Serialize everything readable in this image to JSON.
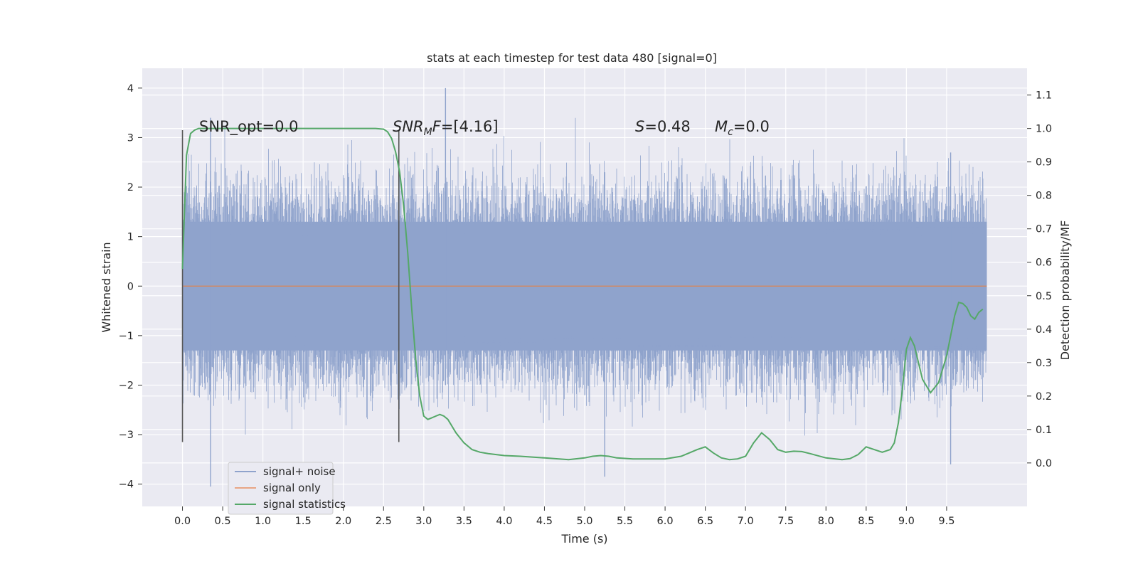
{
  "chart_data": {
    "type": "line",
    "title": "stats at each timestep for test data 480 [signal=0]",
    "xlabel": "Time (s)",
    "ylabel_left": "Whitened strain",
    "ylabel_right": "Detection probability/MF",
    "xlim": [
      -0.5,
      10.5
    ],
    "ylim_left": [
      -4.45,
      4.4
    ],
    "ylim_right": [
      -0.13,
      1.18
    ],
    "x_ticks": [
      "0.0",
      "0.5",
      "1.0",
      "1.5",
      "2.0",
      "2.5",
      "3.0",
      "3.5",
      "4.0",
      "4.5",
      "5.0",
      "5.5",
      "6.0",
      "6.5",
      "7.0",
      "7.5",
      "8.0",
      "8.5",
      "9.0",
      "9.5"
    ],
    "y_left_ticks": [
      "4",
      "3",
      "2",
      "1",
      "0",
      "−1",
      "−2",
      "−3",
      "−4"
    ],
    "y_right_ticks": [
      "1.1",
      "1.0",
      "0.9",
      "0.8",
      "0.7",
      "0.6",
      "0.5",
      "0.4",
      "0.3",
      "0.2",
      "0.1",
      "0.0"
    ],
    "grid": true,
    "annotations": {
      "snr_opt": "SNR_opt=0.0",
      "snr_mf_main": "SNR",
      "snr_mf_sub": "M",
      "snr_mf_rest": "F=[4.16]",
      "s_var": "S",
      "s_rest": "=0.48",
      "mc_var": "M",
      "mc_sub": "c",
      "mc_rest": "=0.0"
    },
    "vertical_lines_x": [
      0.0,
      2.69
    ],
    "legend": {
      "position": "lower-left",
      "entries": [
        "signal+ noise",
        "signal only",
        "signal statistics"
      ]
    },
    "colors": {
      "noise": "#8fa3cc",
      "signal_only": "#dd8452",
      "statistics": "#55a868",
      "background": "#eaeaf2",
      "grid": "#ffffff"
    },
    "series": [
      {
        "name": "signal+ noise",
        "axis": "left",
        "x_range": [
          0.0,
          10.0
        ],
        "typical_band": [
          -1.3,
          1.3
        ],
        "typical_spikes": [
          -2.6,
          2.6
        ],
        "max": 4.0,
        "min": -4.05
      },
      {
        "name": "signal only",
        "axis": "left",
        "x": [
          0.0,
          10.0
        ],
        "values": [
          0.0,
          0.0
        ]
      },
      {
        "name": "signal statistics",
        "axis": "right",
        "x": [
          0.0,
          0.05,
          0.1,
          0.15,
          0.2,
          0.3,
          0.5,
          1.0,
          1.5,
          2.0,
          2.2,
          2.4,
          2.5,
          2.55,
          2.6,
          2.65,
          2.7,
          2.75,
          2.8,
          2.85,
          2.9,
          2.95,
          3.0,
          3.05,
          3.1,
          3.15,
          3.2,
          3.25,
          3.3,
          3.35,
          3.4,
          3.45,
          3.5,
          3.6,
          3.7,
          3.8,
          4.0,
          4.2,
          4.5,
          4.8,
          5.0,
          5.1,
          5.2,
          5.3,
          5.4,
          5.6,
          6.0,
          6.2,
          6.3,
          6.4,
          6.5,
          6.6,
          6.7,
          6.8,
          6.9,
          7.0,
          7.1,
          7.2,
          7.3,
          7.4,
          7.5,
          7.6,
          7.7,
          7.8,
          8.0,
          8.2,
          8.3,
          8.4,
          8.5,
          8.6,
          8.7,
          8.8,
          8.85,
          8.9,
          8.95,
          9.0,
          9.05,
          9.1,
          9.15,
          9.2,
          9.3,
          9.4,
          9.5,
          9.6,
          9.65,
          9.7,
          9.75,
          9.8,
          9.85,
          9.9,
          9.95
        ],
        "values": [
          0.58,
          0.92,
          0.985,
          0.995,
          1.0,
          1.0,
          1.0,
          1.0,
          1.0,
          1.0,
          1.0,
          1.0,
          0.998,
          0.99,
          0.97,
          0.93,
          0.87,
          0.77,
          0.63,
          0.46,
          0.31,
          0.2,
          0.14,
          0.13,
          0.135,
          0.14,
          0.145,
          0.14,
          0.13,
          0.11,
          0.09,
          0.075,
          0.06,
          0.04,
          0.032,
          0.028,
          0.022,
          0.02,
          0.015,
          0.01,
          0.015,
          0.02,
          0.022,
          0.02,
          0.015,
          0.012,
          0.012,
          0.02,
          0.03,
          0.04,
          0.048,
          0.03,
          0.015,
          0.01,
          0.012,
          0.02,
          0.06,
          0.09,
          0.07,
          0.04,
          0.032,
          0.035,
          0.034,
          0.028,
          0.015,
          0.01,
          0.013,
          0.025,
          0.048,
          0.04,
          0.032,
          0.04,
          0.06,
          0.12,
          0.22,
          0.34,
          0.375,
          0.35,
          0.3,
          0.25,
          0.21,
          0.24,
          0.32,
          0.44,
          0.48,
          0.477,
          0.465,
          0.44,
          0.43,
          0.45,
          0.46
        ]
      }
    ]
  }
}
